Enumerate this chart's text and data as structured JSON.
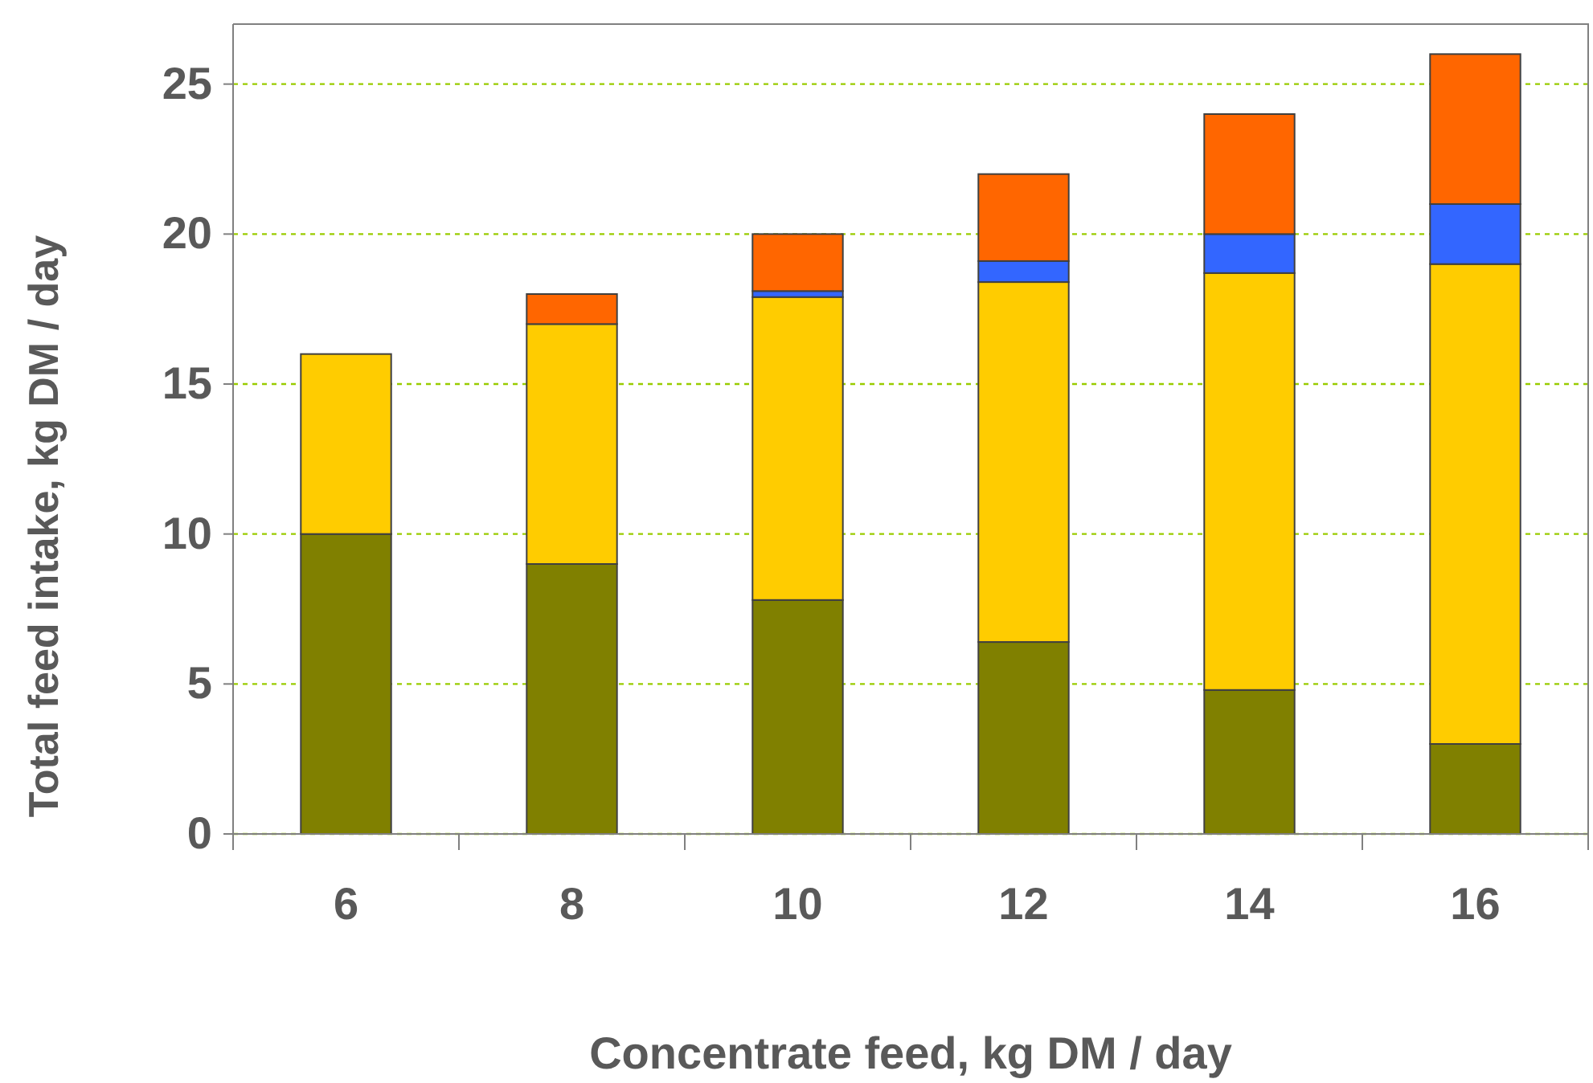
{
  "chart_data": {
    "type": "bar",
    "stacked": true,
    "xlabel": "Concentrate feed, kg DM / day",
    "ylabel": "Total feed intake, kg DM / day",
    "categories": [
      "6",
      "8",
      "10",
      "12",
      "14",
      "16"
    ],
    "series": [
      {
        "color": "#808000",
        "values": [
          10,
          9,
          7.8,
          6.4,
          4.8,
          3
        ]
      },
      {
        "color": "#ffcc00",
        "values": [
          6,
          8,
          10.1,
          12,
          13.9,
          16
        ]
      },
      {
        "color": "#3366ff",
        "values": [
          0,
          0,
          0.2,
          0.7,
          1.3,
          2
        ]
      },
      {
        "color": "#ff6600",
        "values": [
          0,
          1,
          1.9,
          2.9,
          4,
          5
        ]
      }
    ],
    "ylim": [
      0,
      27
    ],
    "yticks": [
      0,
      5,
      10,
      15,
      20,
      25
    ],
    "grid": "y"
  }
}
